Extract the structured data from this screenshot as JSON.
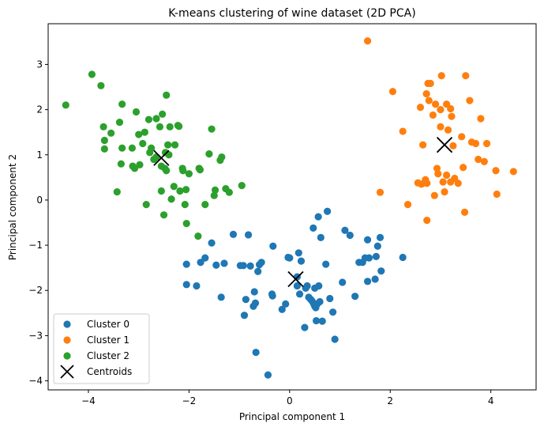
{
  "chart_data": {
    "type": "scatter",
    "title": "K-means clustering of wine dataset (2D PCA)",
    "xlabel": "Principal component 1",
    "ylabel": "Principal component 2",
    "xlim": [
      -4.8,
      4.9
    ],
    "ylim": [
      -4.2,
      3.9
    ],
    "xticks": [
      -4,
      -2,
      0,
      2,
      4
    ],
    "yticks": [
      -4,
      -3,
      -2,
      -1,
      0,
      1,
      2,
      3
    ],
    "xtick_labels": [
      "−4",
      "−2",
      "0",
      "2",
      "4"
    ],
    "ytick_labels": [
      "−4",
      "−3",
      "−2",
      "−1",
      "0",
      "1",
      "2",
      "3"
    ],
    "grid": false,
    "legend_position": "lower-left",
    "series": [
      {
        "name": "Cluster 0",
        "color": "#1f77b4",
        "points": [
          [
            -2.05,
            -1.42
          ],
          [
            -2.05,
            -1.87
          ],
          [
            -1.85,
            -1.9
          ],
          [
            -1.77,
            -1.38
          ],
          [
            -1.68,
            -1.28
          ],
          [
            -1.55,
            -0.95
          ],
          [
            -1.46,
            -1.44
          ],
          [
            -1.36,
            -2.15
          ],
          [
            -1.3,
            -1.4
          ],
          [
            -1.12,
            -0.76
          ],
          [
            -0.98,
            -1.45
          ],
          [
            -0.92,
            -1.45
          ],
          [
            -0.9,
            -2.55
          ],
          [
            -0.87,
            -2.2
          ],
          [
            -0.82,
            -0.77
          ],
          [
            -0.78,
            -1.46
          ],
          [
            -0.72,
            -2.35
          ],
          [
            -0.7,
            -2.03
          ],
          [
            -0.68,
            -2.28
          ],
          [
            -0.67,
            -3.37
          ],
          [
            -0.63,
            -1.58
          ],
          [
            -0.6,
            -1.43
          ],
          [
            -0.56,
            -1.38
          ],
          [
            -0.43,
            -3.87
          ],
          [
            -0.35,
            -2.08
          ],
          [
            -0.34,
            -2.12
          ],
          [
            -0.33,
            -1.02
          ],
          [
            -0.15,
            -2.42
          ],
          [
            -0.08,
            -2.3
          ],
          [
            -0.03,
            -1.27
          ],
          [
            0.0,
            -1.28
          ],
          [
            0.15,
            -1.7
          ],
          [
            0.15,
            -1.9
          ],
          [
            0.18,
            -1.17
          ],
          [
            0.2,
            -2.08
          ],
          [
            0.23,
            -1.35
          ],
          [
            0.3,
            -2.82
          ],
          [
            0.32,
            -1.95
          ],
          [
            0.35,
            -1.9
          ],
          [
            0.38,
            -2.15
          ],
          [
            0.42,
            -2.2
          ],
          [
            0.45,
            -2.24
          ],
          [
            0.47,
            -0.62
          ],
          [
            0.48,
            -2.3
          ],
          [
            0.5,
            -1.95
          ],
          [
            0.5,
            -2.35
          ],
          [
            0.52,
            -2.38
          ],
          [
            0.53,
            -2.67
          ],
          [
            0.55,
            -2.3
          ],
          [
            0.57,
            -0.37
          ],
          [
            0.58,
            -1.9
          ],
          [
            0.6,
            -2.25
          ],
          [
            0.62,
            -0.83
          ],
          [
            0.65,
            -2.68
          ],
          [
            0.72,
            -1.42
          ],
          [
            0.75,
            -0.25
          ],
          [
            0.8,
            -2.18
          ],
          [
            0.86,
            -2.48
          ],
          [
            0.9,
            -3.08
          ],
          [
            1.05,
            -1.82
          ],
          [
            1.1,
            -0.67
          ],
          [
            1.2,
            -0.78
          ],
          [
            1.3,
            -2.13
          ],
          [
            1.38,
            -1.38
          ],
          [
            1.45,
            -1.38
          ],
          [
            1.5,
            -1.28
          ],
          [
            1.55,
            -0.88
          ],
          [
            1.55,
            -1.8
          ],
          [
            1.58,
            -1.28
          ],
          [
            1.7,
            -1.75
          ],
          [
            1.72,
            -1.25
          ],
          [
            1.75,
            -1.02
          ],
          [
            1.8,
            -0.83
          ],
          [
            1.82,
            -1.57
          ],
          [
            2.25,
            -1.27
          ]
        ]
      },
      {
        "name": "Cluster 1",
        "color": "#ff7f0e",
        "points": [
          [
            1.55,
            3.52
          ],
          [
            1.8,
            0.17
          ],
          [
            2.05,
            2.4
          ],
          [
            2.25,
            1.52
          ],
          [
            2.35,
            -0.1
          ],
          [
            2.55,
            0.38
          ],
          [
            2.6,
            2.05
          ],
          [
            2.62,
            0.35
          ],
          [
            2.65,
            1.22
          ],
          [
            2.68,
            0.38
          ],
          [
            2.7,
            0.45
          ],
          [
            2.72,
            2.35
          ],
          [
            2.73,
            0.37
          ],
          [
            2.73,
            -0.45
          ],
          [
            2.75,
            2.58
          ],
          [
            2.77,
            2.2
          ],
          [
            2.8,
            2.58
          ],
          [
            2.85,
            1.88
          ],
          [
            2.88,
            0.1
          ],
          [
            2.9,
            2.12
          ],
          [
            2.93,
            0.7
          ],
          [
            2.95,
            0.58
          ],
          [
            3.0,
            1.62
          ],
          [
            3.0,
            2.0
          ],
          [
            3.02,
            2.75
          ],
          [
            3.05,
            0.4
          ],
          [
            3.08,
            0.18
          ],
          [
            3.12,
            2.12
          ],
          [
            3.12,
            0.55
          ],
          [
            3.15,
            1.55
          ],
          [
            3.2,
            0.4
          ],
          [
            3.2,
            2.02
          ],
          [
            3.22,
            1.85
          ],
          [
            3.25,
            1.2
          ],
          [
            3.28,
            0.48
          ],
          [
            3.35,
            0.37
          ],
          [
            3.42,
            1.4
          ],
          [
            3.45,
            0.72
          ],
          [
            3.48,
            -0.27
          ],
          [
            3.5,
            2.75
          ],
          [
            3.58,
            2.2
          ],
          [
            3.62,
            1.28
          ],
          [
            3.7,
            1.25
          ],
          [
            3.75,
            0.9
          ],
          [
            3.8,
            1.8
          ],
          [
            3.87,
            0.85
          ],
          [
            3.92,
            1.25
          ],
          [
            4.1,
            0.65
          ],
          [
            4.12,
            0.13
          ],
          [
            4.45,
            0.63
          ]
        ]
      },
      {
        "name": "Cluster 2",
        "color": "#2ca02c",
        "points": [
          [
            -4.45,
            2.1
          ],
          [
            -3.93,
            2.78
          ],
          [
            -3.75,
            2.53
          ],
          [
            -3.7,
            1.62
          ],
          [
            -3.68,
            1.13
          ],
          [
            -3.68,
            1.32
          ],
          [
            -3.55,
            1.48
          ],
          [
            -3.43,
            0.18
          ],
          [
            -3.38,
            1.72
          ],
          [
            -3.33,
            1.15
          ],
          [
            -3.33,
            2.12
          ],
          [
            -3.35,
            0.8
          ],
          [
            -3.13,
            1.15
          ],
          [
            -3.12,
            0.75
          ],
          [
            -3.08,
            0.7
          ],
          [
            -3.0,
            1.45
          ],
          [
            -2.98,
            0.78
          ],
          [
            -2.92,
            1.25
          ],
          [
            -2.88,
            1.5
          ],
          [
            -2.85,
            -0.1
          ],
          [
            -2.8,
            1.78
          ],
          [
            -2.78,
            1.05
          ],
          [
            -2.75,
            1.15
          ],
          [
            -2.7,
            0.9
          ],
          [
            -2.65,
            1.8
          ],
          [
            -2.58,
            1.62
          ],
          [
            -2.55,
            0.2
          ],
          [
            -2.53,
            1.9
          ],
          [
            -2.5,
            -0.33
          ],
          [
            -2.48,
            0.7
          ],
          [
            -2.47,
            1.05
          ],
          [
            -2.45,
            0.65
          ],
          [
            -2.45,
            2.32
          ],
          [
            -2.42,
            1.22
          ],
          [
            -2.4,
            1.0
          ],
          [
            -2.38,
            1.62
          ],
          [
            -2.35,
            0.02
          ],
          [
            -2.3,
            0.3
          ],
          [
            -2.28,
            1.22
          ],
          [
            -2.22,
            1.65
          ],
          [
            -2.2,
            1.63
          ],
          [
            -2.18,
            0.2
          ],
          [
            -2.13,
            0.7
          ],
          [
            -2.12,
            0.65
          ],
          [
            -2.08,
            -0.1
          ],
          [
            -2.06,
            0.23
          ],
          [
            -2.05,
            -0.52
          ],
          [
            -2.0,
            0.58
          ],
          [
            -1.82,
            -0.8
          ],
          [
            -1.8,
            0.7
          ],
          [
            -1.78,
            0.67
          ],
          [
            -1.68,
            -0.1
          ],
          [
            -1.6,
            1.02
          ],
          [
            -1.55,
            1.57
          ],
          [
            -1.48,
            0.22
          ],
          [
            -1.5,
            0.1
          ],
          [
            -1.38,
            0.88
          ],
          [
            -1.35,
            0.95
          ],
          [
            -1.27,
            0.25
          ],
          [
            -1.2,
            0.17
          ],
          [
            -0.95,
            0.32
          ],
          [
            -2.55,
            0.75
          ],
          [
            -2.65,
            0.95
          ],
          [
            -3.05,
            1.95
          ]
        ]
      },
      {
        "name": "Centroids",
        "color": "#000000",
        "marker": "x",
        "points": [
          [
            0.12,
            -1.75
          ],
          [
            3.08,
            1.22
          ],
          [
            -2.55,
            0.93
          ]
        ]
      }
    ]
  }
}
